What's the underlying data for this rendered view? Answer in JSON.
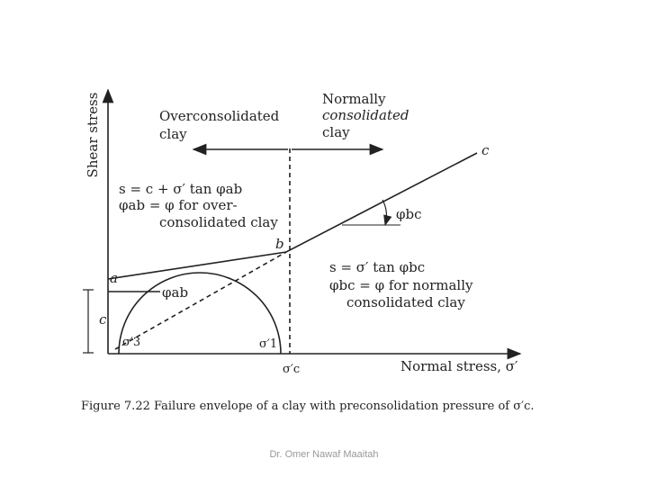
{
  "figure": {
    "y_axis_label": "Shear stress",
    "x_axis_label": "Normal stress, σ′",
    "region_left": [
      "Overconsolidated",
      "clay"
    ],
    "region_right": [
      "Normally",
      "consolidated",
      "clay"
    ],
    "point_a": "a",
    "point_b": "b",
    "point_c": "c",
    "cohesion": "c",
    "left_equation": [
      "s = c + σ′ tan φab",
      "φab = φ for over-",
      "consolidated clay"
    ],
    "right_equation": [
      "s = σ′ tan φbc",
      "φbc = φ for normally",
      "consolidated clay"
    ],
    "angle_left": "φab",
    "angle_right": "φbc",
    "sigma3": "σ′3",
    "sigma1": "σ′1",
    "sigma_c": "σ′c",
    "caption": "Figure 7.22   Failure envelope of a clay with preconsolidation pressure of σ′c."
  },
  "footer": "Dr. Omer Nawaf Maaitah"
}
